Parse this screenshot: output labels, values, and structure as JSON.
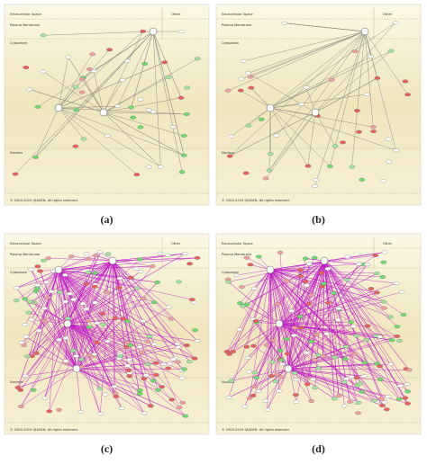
{
  "panels": [
    {
      "caption": "(a)",
      "compartments": {
        "extracellular": "Extracellular Space",
        "membrane": "Plasma Membrane",
        "cytoplasm": "Cytoplasm",
        "nucleus": "Nucleus",
        "other": "Other"
      },
      "footer": "© 2000-2019 QIAGEN. All rights reserved."
    },
    {
      "caption": "(b)",
      "compartments": {
        "extracellular": "Extracellular Space",
        "membrane": "Plasma Membrane",
        "cytoplasm": "Cytoplasm",
        "nucleus": "Nucleus",
        "other": "Other"
      },
      "footer": "© 2000-2019 QIAGEN. All rights reserved."
    },
    {
      "caption": "(c)",
      "compartments": {
        "extracellular": "Extracellular Space",
        "membrane": "Plasma Membrane",
        "cytoplasm": "Cytoplasm",
        "nucleus": "Nucleus",
        "other": "Other"
      },
      "footer": "© 2000-2019 QIAGEN. All rights reserved."
    },
    {
      "caption": "(d)",
      "compartments": {
        "extracellular": "Extracellular Space",
        "membrane": "Plasma Membrane",
        "cytoplasm": "Cytoplasm",
        "nucleus": "Nucleus",
        "other": "Other"
      },
      "footer": "© 2000-2019 QIAGEN. All rights reserved."
    }
  ]
}
